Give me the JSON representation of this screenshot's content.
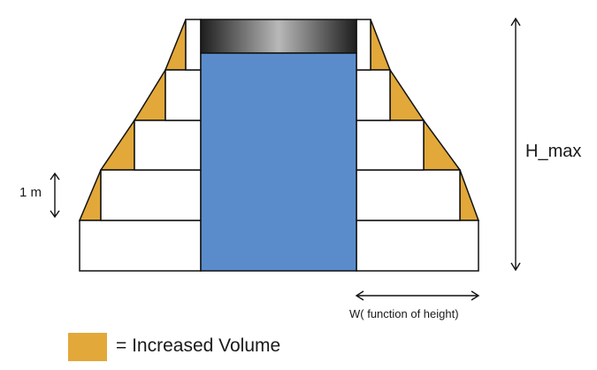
{
  "labels": {
    "unit": "1 m",
    "height_max": "H_max",
    "width": "W( function of height)"
  },
  "legend": {
    "swatch_color": "#e2a83a",
    "text": "= Increased Volume"
  },
  "colors": {
    "water": "#5a8ccc",
    "increased_volume": "#e2a83a",
    "outline": "#111111",
    "block": "#ffffff"
  }
}
